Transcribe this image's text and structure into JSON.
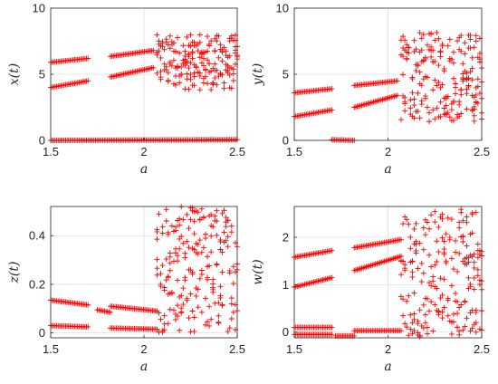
{
  "marker_color": "#ff0000",
  "axis_color": "#262626",
  "grid_color": "#dfdfdf",
  "chart_data": [
    {
      "id": "x",
      "type": "scatter",
      "marker": "+",
      "xlabel": "a",
      "ylabel": "x(t)",
      "xlim": [
        1.5,
        2.5
      ],
      "ylim": [
        0,
        10
      ],
      "xticks": [
        "1.5",
        "2",
        "2.5"
      ],
      "yticks": [
        "0",
        "5",
        "10"
      ],
      "grid": true,
      "branches": [
        {
          "a0": 1.5,
          "a1": 1.7,
          "y0": 5.9,
          "y1": 6.2
        },
        {
          "a0": 1.5,
          "a1": 1.7,
          "y0": 4.0,
          "y1": 4.5
        },
        {
          "a0": 1.5,
          "a1": 2.5,
          "y0": 0.0,
          "y1": 0.05
        },
        {
          "a0": 1.82,
          "a1": 2.05,
          "y0": 6.35,
          "y1": 6.8
        },
        {
          "a0": 1.82,
          "a1": 2.05,
          "y0": 4.8,
          "y1": 5.5
        }
      ],
      "chaos": [
        {
          "a0": 2.07,
          "a1": 2.5,
          "lo": 3.8,
          "hi": 8.0
        }
      ]
    },
    {
      "id": "y",
      "type": "scatter",
      "marker": "+",
      "xlabel": "a",
      "ylabel": "y(t)",
      "xlim": [
        1.5,
        2.5
      ],
      "ylim": [
        0,
        10
      ],
      "xticks": [
        "1.5",
        "2",
        "2.5"
      ],
      "yticks": [
        "0",
        "5",
        "10"
      ],
      "grid": true,
      "branches": [
        {
          "a0": 1.5,
          "a1": 1.7,
          "y0": 3.6,
          "y1": 3.9
        },
        {
          "a0": 1.5,
          "a1": 1.7,
          "y0": 1.8,
          "y1": 2.3
        },
        {
          "a0": 1.7,
          "a1": 1.82,
          "y0": 0.05,
          "y1": 0.0
        },
        {
          "a0": 1.82,
          "a1": 2.05,
          "y0": 4.15,
          "y1": 4.5
        },
        {
          "a0": 1.82,
          "a1": 2.05,
          "y0": 2.5,
          "y1": 3.4
        }
      ],
      "chaos": [
        {
          "a0": 2.07,
          "a1": 2.5,
          "lo": 1.4,
          "hi": 8.2
        }
      ]
    },
    {
      "id": "z",
      "type": "scatter",
      "marker": "+",
      "xlabel": "a",
      "ylabel": "z(t)",
      "xlim": [
        1.5,
        2.5
      ],
      "ylim": [
        -0.02,
        0.52
      ],
      "xticks": [
        "1.5",
        "2",
        "2.5"
      ],
      "yticks": [
        "0",
        "0.2",
        "0.4"
      ],
      "grid": true,
      "branches": [
        {
          "a0": 1.5,
          "a1": 1.7,
          "y0": 0.135,
          "y1": 0.115
        },
        {
          "a0": 1.5,
          "a1": 1.7,
          "y0": 0.03,
          "y1": 0.025
        },
        {
          "a0": 1.75,
          "a1": 1.82,
          "y0": 0.095,
          "y1": 0.085
        },
        {
          "a0": 1.82,
          "a1": 2.07,
          "y0": 0.11,
          "y1": 0.09
        },
        {
          "a0": 1.82,
          "a1": 2.07,
          "y0": 0.02,
          "y1": 0.015
        }
      ],
      "chaos": [
        {
          "a0": 2.07,
          "a1": 2.5,
          "lo": 0.0,
          "hi": 0.52
        }
      ]
    },
    {
      "id": "w",
      "type": "scatter",
      "marker": "+",
      "xlabel": "a",
      "ylabel": "w(t)",
      "xlim": [
        1.5,
        2.5
      ],
      "ylim": [
        -0.12,
        2.65
      ],
      "xticks": [
        "1.5",
        "2",
        "2.5"
      ],
      "yticks": [
        "0",
        "1",
        "2"
      ],
      "grid": true,
      "branches": [
        {
          "a0": 1.5,
          "a1": 1.7,
          "y0": 1.58,
          "y1": 1.72
        },
        {
          "a0": 1.5,
          "a1": 1.7,
          "y0": 0.95,
          "y1": 1.15
        },
        {
          "a0": 1.5,
          "a1": 1.7,
          "y0": 0.1,
          "y1": 0.1
        },
        {
          "a0": 1.5,
          "a1": 1.7,
          "y0": -0.05,
          "y1": -0.05
        },
        {
          "a0": 1.72,
          "a1": 1.82,
          "y0": -0.08,
          "y1": -0.08
        },
        {
          "a0": 1.82,
          "a1": 2.07,
          "y0": 1.78,
          "y1": 1.95
        },
        {
          "a0": 1.82,
          "a1": 2.07,
          "y0": 1.3,
          "y1": 1.6
        },
        {
          "a0": 1.82,
          "a1": 2.07,
          "y0": 0.03,
          "y1": 0.03
        }
      ],
      "chaos": [
        {
          "a0": 2.07,
          "a1": 2.5,
          "lo": -0.1,
          "hi": 2.6
        }
      ]
    }
  ]
}
